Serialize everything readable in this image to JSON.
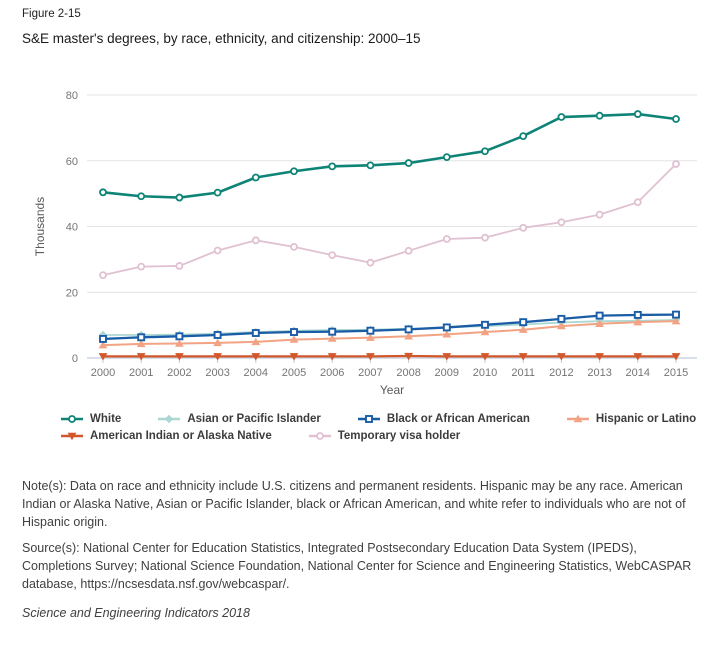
{
  "figure_label": "Figure 2-15",
  "title": "S&E master's degrees, by race, ethnicity, and citizenship: 2000–15",
  "chart_data": {
    "type": "line",
    "x": [
      2000,
      2001,
      2002,
      2003,
      2004,
      2005,
      2006,
      2007,
      2008,
      2009,
      2010,
      2011,
      2012,
      2013,
      2014,
      2015
    ],
    "xlabel": "Year",
    "ylabel": "Thousands",
    "ylim": [
      0,
      80
    ],
    "yticks": [
      0,
      20,
      40,
      60,
      80
    ],
    "grid": "horizontal",
    "legend_position": "bottom",
    "axis_color": "#c2ccda",
    "grid_color": "#e4e4e4",
    "tick_label_color": "#757575",
    "axis_label_color": "#5a5a5a",
    "series": [
      {
        "name": "White",
        "color": "#0e8477",
        "marker": "circle-open",
        "line_width": 2.6,
        "values": [
          50.4,
          49.2,
          48.8,
          50.3,
          54.9,
          56.8,
          58.3,
          58.6,
          59.3,
          61.1,
          62.9,
          67.5,
          73.3,
          73.7,
          74.2,
          72.7
        ]
      },
      {
        "name": "Asian or Pacific Islander",
        "color": "#abd7d3",
        "marker": "diamond",
        "line_width": 1.8,
        "values": [
          7.0,
          7.0,
          7.1,
          7.4,
          7.9,
          8.3,
          8.5,
          8.6,
          8.9,
          9.3,
          9.7,
          10.2,
          10.8,
          11.2,
          11.3,
          11.6
        ]
      },
      {
        "name": "Black or African American",
        "color": "#1a5da6",
        "marker": "square-open",
        "line_width": 2.3,
        "values": [
          5.8,
          6.3,
          6.6,
          7.0,
          7.6,
          7.9,
          8.0,
          8.3,
          8.7,
          9.3,
          10.1,
          10.9,
          11.9,
          12.9,
          13.1,
          13.2
        ]
      },
      {
        "name": "Hispanic or Latino",
        "color": "#f2a383",
        "marker": "triangle-up",
        "line_width": 2.0,
        "values": [
          3.9,
          4.3,
          4.4,
          4.6,
          4.9,
          5.6,
          5.9,
          6.2,
          6.6,
          7.2,
          7.9,
          8.6,
          9.7,
          10.4,
          10.9,
          11.2
        ]
      },
      {
        "name": "American Indian or Alaska Native",
        "color": "#d2572b",
        "marker": "triangle-down",
        "line_width": 2.3,
        "values": [
          0.5,
          0.5,
          0.5,
          0.5,
          0.5,
          0.5,
          0.5,
          0.5,
          0.6,
          0.5,
          0.5,
          0.5,
          0.5,
          0.5,
          0.5,
          0.5
        ]
      },
      {
        "name": "Temporary visa holder",
        "color": "#e0c1d1",
        "marker": "circle-open",
        "line_width": 1.8,
        "values": [
          25.2,
          27.8,
          28.0,
          32.7,
          35.8,
          33.8,
          31.3,
          29.0,
          32.6,
          36.2,
          36.6,
          39.6,
          41.3,
          43.6,
          47.4,
          59.0
        ]
      }
    ],
    "draw_order": [
      1,
      5,
      3,
      0,
      2,
      4
    ]
  },
  "notes": "Note(s): Data on race and ethnicity include U.S. citizens and permanent residents. Hispanic may be any race. American Indian or Alaska Native, Asian or Pacific Islander, black or African American, and white refer to individuals who are not of Hispanic origin.",
  "source": "Source(s): National Center for Education Statistics, Integrated Postsecondary Education Data System (IPEDS), Completions Survey; National Science Foundation, National Center for Science and Engineering Statistics, WebCASPAR database, https://ncsesdata.nsf.gov/webcaspar/.",
  "footer": "Science and Engineering Indicators 2018"
}
